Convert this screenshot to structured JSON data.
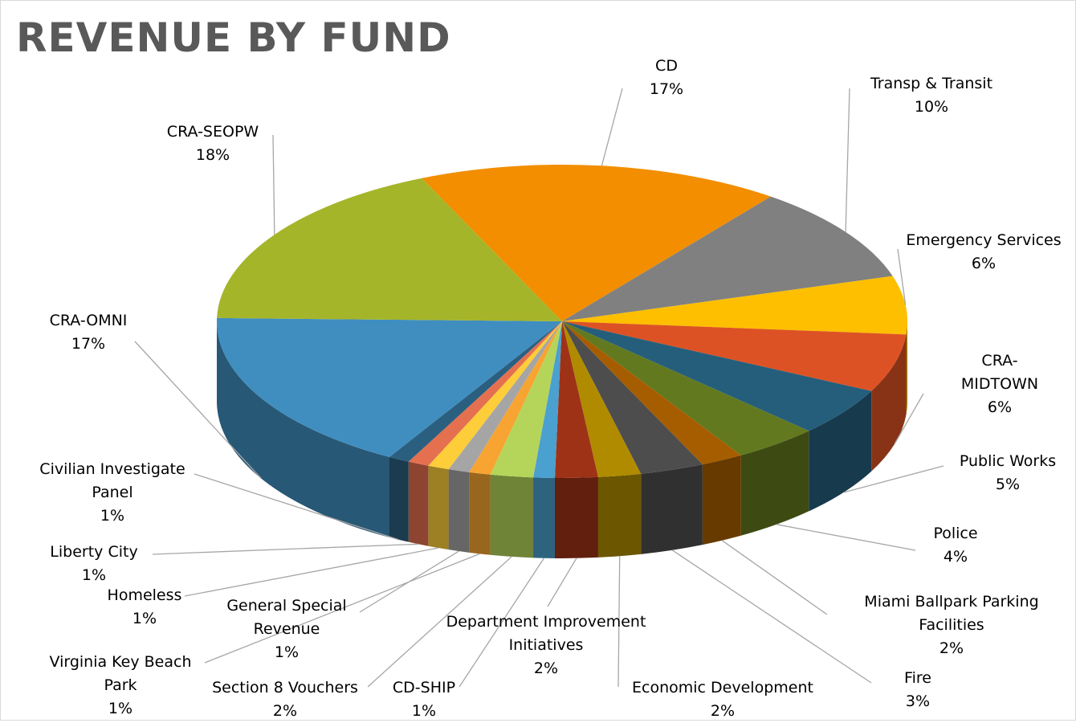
{
  "chart_data": {
    "type": "pie3d",
    "title": "REVENUE BY FUND",
    "categories": [
      "CD",
      "Transp & Transit",
      "Emergency Services",
      "CRA-MIDTOWN",
      "Public Works",
      "Police",
      "Miami Ballpark Parking Facilities",
      "Fire",
      "Economic Development",
      "Department Improvement Initiatives",
      "CD-SHIP",
      "Section 8 Vouchers",
      "Virginia Key Beach Park",
      "General Special Revenue",
      "Homeless",
      "Liberty City",
      "Civilian Investigate Panel",
      "CRA-OMNI",
      "CRA-SEOPW"
    ],
    "values": [
      17,
      10,
      6,
      6,
      5,
      4,
      2,
      3,
      2,
      2,
      1,
      2,
      1,
      1,
      1,
      1,
      1,
      17,
      18
    ],
    "value_labels": [
      "17%",
      "10%",
      "6%",
      "6%",
      "5%",
      "4%",
      "2%",
      "3%",
      "2%",
      "2%",
      "1%",
      "2%",
      "1%",
      "1%",
      "1%",
      "1%",
      "1%",
      "17%",
      "18%"
    ],
    "colors": [
      "#f28e00",
      "#808080",
      "#fdbf00",
      "#dd5224",
      "#255e7b",
      "#62791f",
      "#a65d00",
      "#4d4d4d",
      "#b08b00",
      "#9e3216",
      "#4aa0cf",
      "#b5d55a",
      "#f7a432",
      "#a5a5a5",
      "#fdcd3a",
      "#e4704f",
      "#2b5f80",
      "#3f8ebf",
      "#a5b52a"
    ]
  }
}
